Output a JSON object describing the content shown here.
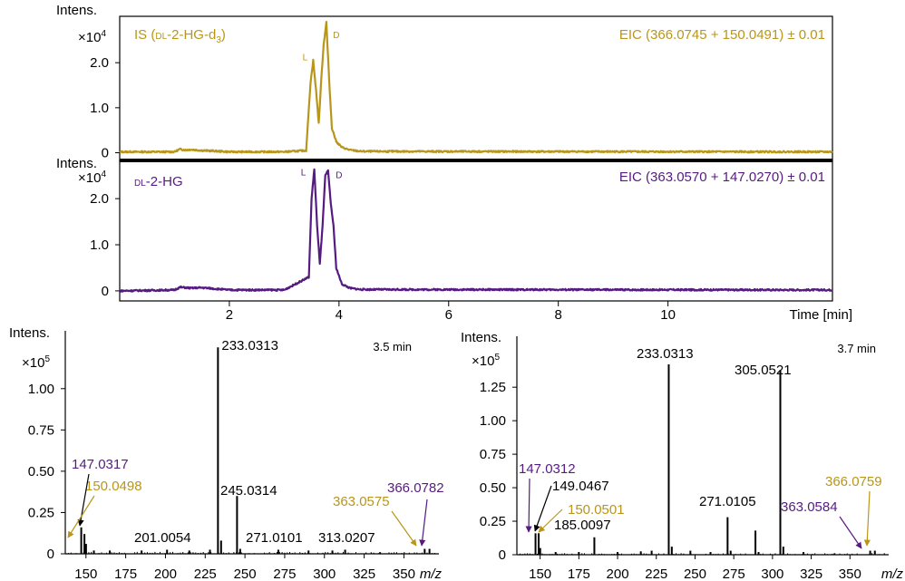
{
  "colors": {
    "is_trace": "#b8961b",
    "hg_trace": "#561b80",
    "spectrum": "#000000",
    "axis": "#000000"
  },
  "chart_data": [
    {
      "id": "chromatogram-is",
      "type": "line",
      "title": "IS (DL-2-HG-d3)",
      "title_parts": {
        "prefix": "IS (",
        "smallcaps": "dl",
        "mid": "-2-HG-d",
        "sub": "3",
        "suffix": ")"
      },
      "eic_label": "EIC (366.0745 + 150.0491) ± 0.01",
      "ylabel": "Intens.",
      "multiplier": "×10",
      "multiplier_exp": "4",
      "ylim": [
        -0.05,
        2.95
      ],
      "xlim": [
        0,
        13.0
      ],
      "yticks": [
        "0",
        "1.0",
        "2.0"
      ],
      "ytick_values": [
        0,
        1.0,
        2.0
      ],
      "peak_labels": [
        {
          "text": "L",
          "x": 3.38,
          "y": 2.05
        },
        {
          "text": "D",
          "x": 3.95,
          "y": 2.55
        }
      ],
      "x": [
        0,
        1.0,
        1.1,
        1.2,
        1.3,
        1.5,
        1.7,
        2.0,
        3.0,
        3.4,
        3.48,
        3.53,
        3.58,
        3.63,
        3.68,
        3.72,
        3.77,
        3.82,
        3.87,
        3.95,
        4.05,
        4.2,
        4.4,
        13.0
      ],
      "y": [
        0.02,
        0.02,
        0.08,
        0.06,
        0.07,
        0.05,
        0.04,
        0.02,
        0.02,
        0.05,
        1.55,
        2.05,
        1.4,
        0.65,
        1.7,
        2.4,
        2.9,
        1.6,
        0.55,
        0.25,
        0.12,
        0.06,
        0.03,
        0.02
      ]
    },
    {
      "id": "chromatogram-hg",
      "type": "line",
      "title": "DL-2-HG",
      "title_parts": {
        "smallcaps": "dl",
        "rest": "-2-HG"
      },
      "eic_label": "EIC (363.0570 + 147.0270) ± 0.01",
      "ylabel": "Intens.",
      "multiplier": "×10",
      "multiplier_exp": "4",
      "ylim": [
        -0.1,
        2.75
      ],
      "xlim": [
        0,
        13.0
      ],
      "xticks": [
        2,
        4,
        6,
        8,
        10
      ],
      "xlabel": "Time [min]",
      "yticks": [
        "0",
        "1.0",
        "2.0"
      ],
      "ytick_values": [
        0,
        1.0,
        2.0
      ],
      "peak_labels": [
        {
          "text": "L",
          "x": 3.35,
          "y": 2.5
        },
        {
          "text": "D",
          "x": 4.0,
          "y": 2.45
        }
      ],
      "x": [
        0,
        1.0,
        1.1,
        1.3,
        1.5,
        1.7,
        2.0,
        3.0,
        3.45,
        3.5,
        3.55,
        3.6,
        3.65,
        3.7,
        3.75,
        3.8,
        3.85,
        3.9,
        3.95,
        4.05,
        4.2,
        4.4,
        13.0
      ],
      "y": [
        0.0,
        0.02,
        0.08,
        0.06,
        0.07,
        0.05,
        0.02,
        0.02,
        0.3,
        2.0,
        2.65,
        1.4,
        0.6,
        1.4,
        2.5,
        2.6,
        1.9,
        1.4,
        0.5,
        0.15,
        0.06,
        0.03,
        0.02
      ]
    },
    {
      "id": "spectrum-3-5",
      "type": "bar",
      "ylabel": "Intens.",
      "multiplier": "×10",
      "multiplier_exp": "5",
      "time_label": "3.5 min",
      "xlabel": "m/z",
      "xlim": [
        137,
        372
      ],
      "ylim": [
        0,
        1.35
      ],
      "xticks": [
        150,
        175,
        200,
        225,
        250,
        275,
        300,
        325,
        350
      ],
      "yticks": [
        "0",
        "0.25",
        "0.50",
        "0.75",
        "1.00"
      ],
      "ytick_values": [
        0,
        0.25,
        0.5,
        0.75,
        1.0
      ],
      "peaks": [
        {
          "mz": 147.0317,
          "i": 0.16
        },
        {
          "mz": 149.05,
          "i": 0.12
        },
        {
          "mz": 150.0498,
          "i": 0.06
        },
        {
          "mz": 155.0,
          "i": 0.02
        },
        {
          "mz": 165.0,
          "i": 0.02
        },
        {
          "mz": 185.0,
          "i": 0.02
        },
        {
          "mz": 201.0054,
          "i": 0.025
        },
        {
          "mz": 215.0,
          "i": 0.02
        },
        {
          "mz": 228.0,
          "i": 0.025
        },
        {
          "mz": 233.0313,
          "i": 1.25
        },
        {
          "mz": 235.0,
          "i": 0.08
        },
        {
          "mz": 245.0314,
          "i": 0.35
        },
        {
          "mz": 247.0,
          "i": 0.03
        },
        {
          "mz": 271.0101,
          "i": 0.025
        },
        {
          "mz": 290.0,
          "i": 0.02
        },
        {
          "mz": 305.0,
          "i": 0.02
        },
        {
          "mz": 313.0207,
          "i": 0.025
        },
        {
          "mz": 335.0,
          "i": 0.01
        },
        {
          "mz": 363.0575,
          "i": 0.03
        },
        {
          "mz": 366.0782,
          "i": 0.03
        }
      ],
      "labels": [
        {
          "text": "233.0313",
          "mz": 233.0313,
          "color": "spectrum"
        },
        {
          "text": "245.0314",
          "mz": 245.0314,
          "color": "spectrum"
        },
        {
          "text": "201.0054",
          "mz": 201.0054,
          "color": "spectrum"
        },
        {
          "text": "271.0101",
          "mz": 271.0101,
          "color": "spectrum"
        },
        {
          "text": "313.0207",
          "mz": 313.0207,
          "color": "spectrum"
        },
        {
          "text": "147.0317",
          "mz": 147.0317,
          "color": "hg_trace"
        },
        {
          "text": "150.0498",
          "mz": 150.0498,
          "color": "is_trace"
        },
        {
          "text": "366.0782",
          "mz": 366.0782,
          "color": "hg_trace"
        },
        {
          "text": "363.0575",
          "mz": 363.0575,
          "color": "is_trace"
        }
      ]
    },
    {
      "id": "spectrum-3-7",
      "type": "bar",
      "ylabel": "Intens.",
      "multiplier": "×10",
      "multiplier_exp": "5",
      "time_label": "3.7 min",
      "xlabel": "m/z",
      "xlim": [
        135,
        375
      ],
      "ylim": [
        0,
        1.63
      ],
      "xticks": [
        150,
        175,
        200,
        225,
        250,
        275,
        300,
        325,
        350
      ],
      "yticks": [
        "0",
        "0.25",
        "0.50",
        "0.75",
        "1.00",
        "1.25"
      ],
      "ytick_values": [
        0,
        0.25,
        0.5,
        0.75,
        1.0,
        1.25
      ],
      "peaks": [
        {
          "mz": 147.0312,
          "i": 0.16
        },
        {
          "mz": 149.0467,
          "i": 0.16
        },
        {
          "mz": 150.0501,
          "i": 0.05
        },
        {
          "mz": 160.0,
          "i": 0.02
        },
        {
          "mz": 175.0,
          "i": 0.02
        },
        {
          "mz": 185.0097,
          "i": 0.13
        },
        {
          "mz": 200.0,
          "i": 0.02
        },
        {
          "mz": 215.0,
          "i": 0.025
        },
        {
          "mz": 222.0,
          "i": 0.03
        },
        {
          "mz": 233.0313,
          "i": 1.42
        },
        {
          "mz": 235.0,
          "i": 0.06
        },
        {
          "mz": 247.0,
          "i": 0.03
        },
        {
          "mz": 260.0,
          "i": 0.02
        },
        {
          "mz": 271.0105,
          "i": 0.28
        },
        {
          "mz": 273.0,
          "i": 0.03
        },
        {
          "mz": 289.0,
          "i": 0.18
        },
        {
          "mz": 291.0,
          "i": 0.02
        },
        {
          "mz": 305.0521,
          "i": 1.38
        },
        {
          "mz": 307.0,
          "i": 0.06
        },
        {
          "mz": 320.0,
          "i": 0.02
        },
        {
          "mz": 340.0,
          "i": 0.01
        },
        {
          "mz": 363.0584,
          "i": 0.03
        },
        {
          "mz": 366.0759,
          "i": 0.03
        }
      ],
      "labels": [
        {
          "text": "233.0313",
          "mz": 233.0313,
          "color": "spectrum"
        },
        {
          "text": "305.0521",
          "mz": 305.0521,
          "color": "spectrum"
        },
        {
          "text": "271.0105",
          "mz": 271.0105,
          "color": "spectrum"
        },
        {
          "text": "185.0097",
          "mz": 185.0097,
          "color": "spectrum"
        },
        {
          "text": "149.0467",
          "mz": 149.0467,
          "color": "spectrum"
        },
        {
          "text": "147.0312",
          "mz": 147.0312,
          "color": "hg_trace"
        },
        {
          "text": "150.0501",
          "mz": 150.0501,
          "color": "is_trace"
        },
        {
          "text": "366.0759",
          "mz": 366.0759,
          "color": "is_trace"
        },
        {
          "text": "363.0584",
          "mz": 363.0584,
          "color": "hg_trace"
        }
      ]
    }
  ]
}
